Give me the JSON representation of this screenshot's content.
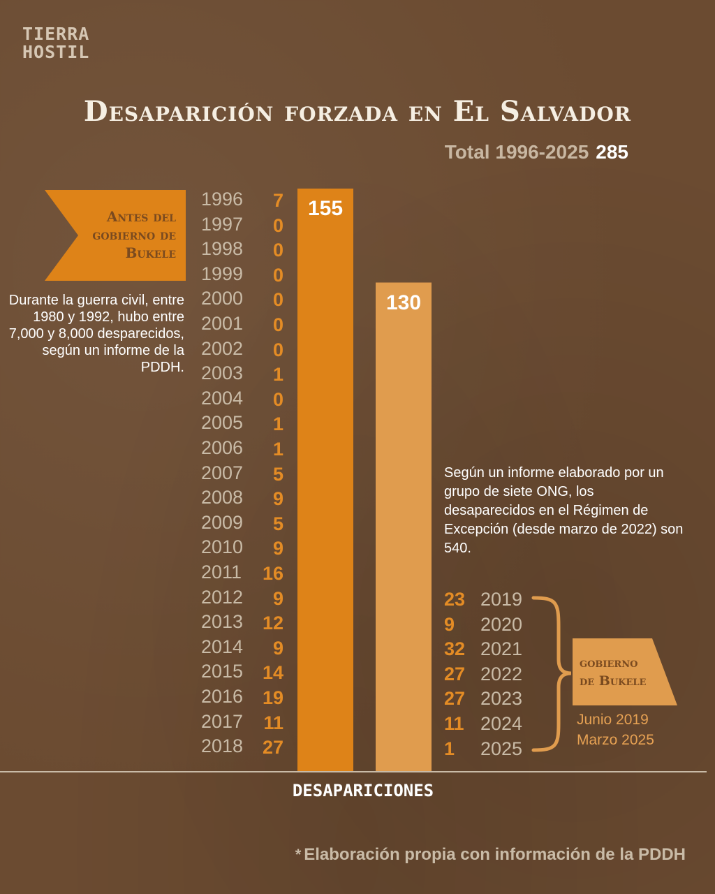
{
  "logo": {
    "line1": "TIERRA",
    "line2": "HOSTIL"
  },
  "colors": {
    "background": "#6b4b31",
    "bar_before": "#de8318",
    "bar_bukele": "#e09c4e",
    "accent": "#e48c25",
    "year_text": "#c9bba7"
  },
  "total": {
    "label": "Total 1996-2025",
    "value": "285"
  },
  "flag_before": {
    "line1": "Antes del",
    "line2": "gobierno de",
    "line3": "Bukele"
  },
  "flag_bukele": {
    "line1": "gobierno",
    "line2": "de Bukele"
  },
  "period": {
    "line1": "Junio 2019",
    "line2": "Marzo 2025"
  },
  "note_left": "Durante la guerra civil, entre 1980 y 1992, hubo entre 7,000 y 8,000 desparecidos, según un informe de la PDDH.",
  "note_right": "Según un informe elaborado por un grupo de siete ONG, los desaparecidos en el Régimen de Excepción (desde marzo de 2022) son 540.",
  "source": {
    "star": "*",
    "text": "Elaboración propia con información de la PDDH"
  },
  "chart_data": {
    "type": "bar",
    "title": "Desaparición forzada en El Salvador",
    "xlabel": "DESAPARICIONES",
    "categories": [
      "Antes del gobierno de Bukele",
      "Gobierno de Bukele"
    ],
    "values": [
      155,
      130
    ],
    "value_labels": [
      "155",
      "130"
    ],
    "ylim": [
      0,
      155
    ],
    "grid": false,
    "yearly_before": {
      "years": [
        "1996",
        "1997",
        "1998",
        "1999",
        "2000",
        "2001",
        "2002",
        "2003",
        "2004",
        "2005",
        "2006",
        "2007",
        "2008",
        "2009",
        "2010",
        "2011",
        "2012",
        "2013",
        "2014",
        "2015",
        "2016",
        "2017",
        "2018"
      ],
      "counts": [
        "7",
        "0",
        "0",
        "0",
        "0",
        "0",
        "0",
        "1",
        "0",
        "1",
        "1",
        "5",
        "9",
        "5",
        "9",
        "16",
        "9",
        "12",
        "9",
        "14",
        "19",
        "11",
        "27"
      ]
    },
    "yearly_bukele": {
      "years": [
        "2019",
        "2020",
        "2021",
        "2022",
        "2023",
        "2024",
        "2025"
      ],
      "counts": [
        "23",
        "9",
        "32",
        "27",
        "27",
        "11",
        "1"
      ]
    }
  }
}
